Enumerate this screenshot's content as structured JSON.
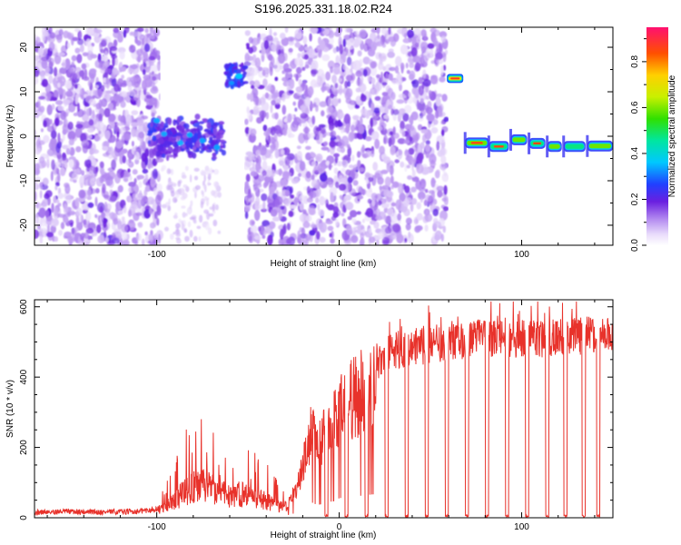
{
  "title": "S196.2025.331.18.02.R24",
  "chart_data": [
    {
      "type": "heatmap",
      "xlabel": "Height of straight line (km)",
      "ylabel": "Frequency (Hz)",
      "xlim": [
        -167,
        150
      ],
      "ylim": [
        -24.5,
        24.5
      ],
      "xticks": [
        -100,
        0,
        100
      ],
      "xtick_labels": [
        "-100",
        "0",
        "100"
      ],
      "yticks": [
        -20,
        -10,
        0,
        10,
        20
      ],
      "ytick_labels": [
        "-20",
        "-10",
        "0",
        "10",
        "20"
      ],
      "colorbar": {
        "label": "Normalized spectral amplitude",
        "range": [
          0.0,
          0.95
        ],
        "ticks": [
          0.0,
          0.2,
          0.4,
          0.6,
          0.8
        ],
        "tick_labels": [
          "0.0",
          "0.2",
          "0.4",
          "0.6",
          "0.8"
        ]
      },
      "features": [
        {
          "name": "noise-region-left",
          "x_range": [
            -167,
            -98
          ],
          "freq_range": [
            -24,
            24
          ],
          "amplitude": 0.1
        },
        {
          "name": "blank-gap-1",
          "x_range": [
            -98,
            -64
          ],
          "freq_range": [
            5,
            24
          ],
          "amplitude": 0.0
        },
        {
          "name": "cluster-near-zero",
          "x_range": [
            -104,
            -63
          ],
          "freq_range": [
            -6,
            6
          ],
          "amplitude": 0.3
        },
        {
          "name": "signal-13hz-left",
          "x_range": [
            -62,
            -51
          ],
          "freq_range": [
            11,
            16
          ],
          "amplitude": 0.35
        },
        {
          "name": "noise-region-middle",
          "x_range": [
            -51,
            59
          ],
          "freq_range": [
            -24,
            24
          ],
          "amplitude": 0.1
        },
        {
          "name": "signal-13hz-right",
          "x_range": [
            59,
            68
          ],
          "freq_range": [
            12,
            14
          ],
          "amplitude": 0.9
        },
        {
          "name": "carrier-near-zero",
          "x_range": [
            69,
            150
          ],
          "freq_range": [
            -3.5,
            -0.5
          ],
          "amplitude": 0.9
        }
      ]
    },
    {
      "type": "line",
      "xlabel": "Height of straight line (km)",
      "ylabel": "SNR (10 * v/v)",
      "xlim": [
        -167,
        150
      ],
      "ylim": [
        0,
        620
      ],
      "xticks": [
        -100,
        0,
        100
      ],
      "xtick_labels": [
        "-100",
        "0",
        "100"
      ],
      "yticks": [
        0,
        200,
        400,
        600
      ],
      "ytick_labels": [
        "0",
        "200",
        "400",
        "600"
      ],
      "series": [
        {
          "name": "SNR",
          "color": "#e8322b",
          "x": [
            -167,
            -150,
            -130,
            -110,
            -100,
            -95,
            -90,
            -85,
            -80,
            -75,
            -70,
            -65,
            -60,
            -55,
            -50,
            -45,
            -40,
            -35,
            -30,
            -27,
            -24,
            -20,
            -15,
            -12,
            -8,
            -5,
            -2,
            0,
            5,
            10,
            15,
            20,
            25,
            30,
            40,
            50,
            60,
            70,
            80,
            90,
            100,
            110,
            120,
            130,
            140,
            150
          ],
          "values": [
            15,
            18,
            16,
            18,
            25,
            40,
            60,
            95,
            110,
            120,
            100,
            85,
            80,
            85,
            75,
            70,
            60,
            45,
            35,
            60,
            90,
            170,
            290,
            240,
            275,
            300,
            330,
            370,
            390,
            410,
            430,
            450,
            470,
            480,
            490,
            500,
            505,
            510,
            515,
            515,
            515,
            515,
            520,
            520,
            525,
            520
          ],
          "dropouts": [
            -7,
            4,
            15,
            26,
            37,
            48,
            59,
            70,
            81,
            92,
            103,
            114,
            124,
            134,
            142
          ]
        }
      ]
    }
  ],
  "colors": {
    "snr_line": "#e8322b",
    "noise": "#8a4dd8",
    "axis": "#000000"
  }
}
